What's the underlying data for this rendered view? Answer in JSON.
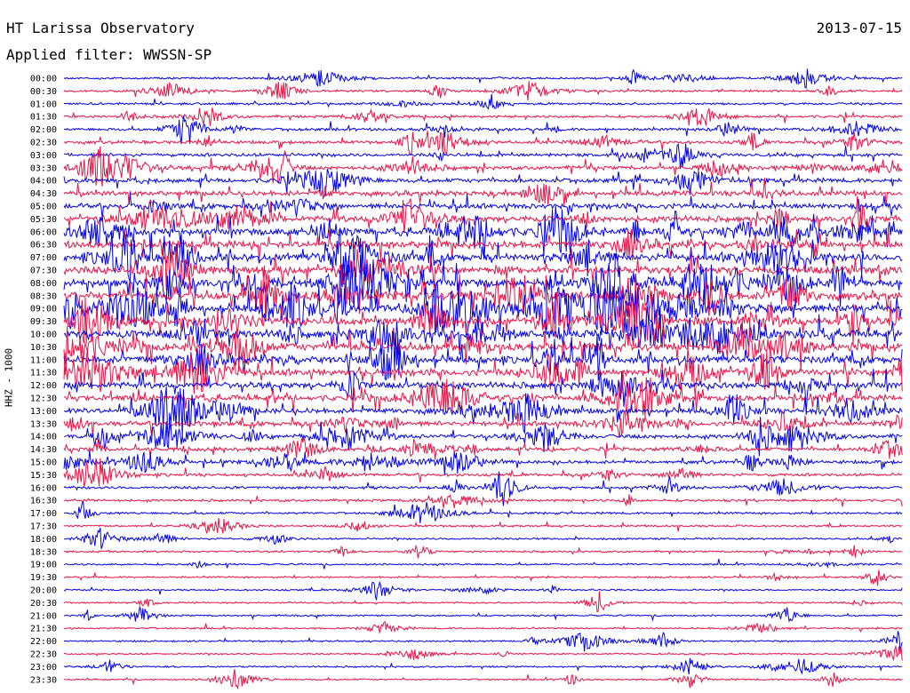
{
  "header": {
    "station": "HT Larissa Observatory",
    "date": "2013-07-15",
    "filter_label": "Applied filter: WWSSN-SP"
  },
  "channel_label": "HHZ - 1000",
  "colors": {
    "trace_a": "#0000ee",
    "trace_b": "#ee1144"
  },
  "chart_data": {
    "type": "line",
    "title": "HT Larissa Observatory",
    "subtitle": "Applied filter: WWSSN-SP",
    "ylabel": "HHZ - 1000",
    "categories": [
      "00:00",
      "00:30",
      "01:00",
      "01:30",
      "02:00",
      "02:30",
      "03:00",
      "03:30",
      "04:00",
      "04:30",
      "05:00",
      "05:30",
      "06:00",
      "06:30",
      "07:00",
      "07:30",
      "08:00",
      "08:30",
      "09:00",
      "09:30",
      "10:00",
      "10:30",
      "11:00",
      "11:30",
      "12:00",
      "12:30",
      "13:00",
      "13:30",
      "14:00",
      "14:30",
      "15:00",
      "15:30",
      "16:00",
      "16:30",
      "17:00",
      "17:30",
      "18:00",
      "18:30",
      "19:00",
      "19:30",
      "20:00",
      "20:30",
      "21:00",
      "21:30",
      "22:00",
      "22:30",
      "23:00",
      "23:30"
    ],
    "series_colors": [
      "#0000ee",
      "#ee1144"
    ],
    "grid": false,
    "legend": "none"
  }
}
